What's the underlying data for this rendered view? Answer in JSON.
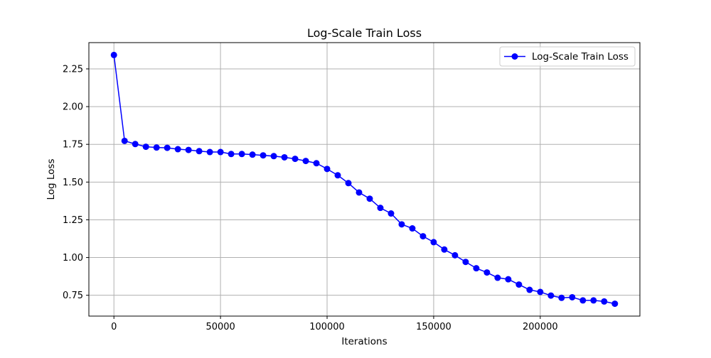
{
  "chart_data": {
    "type": "line",
    "title": "Log-Scale Train Loss",
    "xlabel": "Iterations",
    "ylabel": "Log Loss",
    "xlim": [
      -11750,
      246750
    ],
    "ylim": [
      0.612,
      2.424
    ],
    "xticks": [
      0,
      50000,
      100000,
      150000,
      200000
    ],
    "xtick_labels": [
      "0",
      "50000",
      "100000",
      "150000",
      "200000"
    ],
    "yticks": [
      0.75,
      1.0,
      1.25,
      1.5,
      1.75,
      2.0,
      2.25
    ],
    "ytick_labels": [
      "0.75",
      "1.00",
      "1.25",
      "1.50",
      "1.75",
      "2.00",
      "2.25"
    ],
    "grid": true,
    "legend_position": "top-right",
    "series": [
      {
        "name": "Log-Scale Train Loss",
        "color": "#0000ff",
        "marker": "circle",
        "x": [
          0,
          5000,
          10000,
          15000,
          20000,
          25000,
          30000,
          35000,
          40000,
          45000,
          50000,
          55000,
          60000,
          65000,
          70000,
          75000,
          80000,
          85000,
          90000,
          95000,
          100000,
          105000,
          110000,
          115000,
          120000,
          125000,
          130000,
          135000,
          140000,
          145000,
          150000,
          155000,
          160000,
          165000,
          170000,
          175000,
          180000,
          185000,
          190000,
          195000,
          200000,
          205000,
          210000,
          215000,
          220000,
          225000,
          230000,
          235000
        ],
        "y": [
          2.342,
          1.773,
          1.752,
          1.734,
          1.729,
          1.727,
          1.718,
          1.713,
          1.705,
          1.699,
          1.699,
          1.686,
          1.686,
          1.682,
          1.677,
          1.672,
          1.664,
          1.654,
          1.64,
          1.625,
          1.587,
          1.545,
          1.493,
          1.431,
          1.39,
          1.329,
          1.292,
          1.22,
          1.193,
          1.141,
          1.102,
          1.053,
          1.015,
          0.971,
          0.929,
          0.901,
          0.866,
          0.856,
          0.821,
          0.786,
          0.772,
          0.748,
          0.733,
          0.737,
          0.716,
          0.716,
          0.709,
          0.694
        ]
      }
    ]
  }
}
